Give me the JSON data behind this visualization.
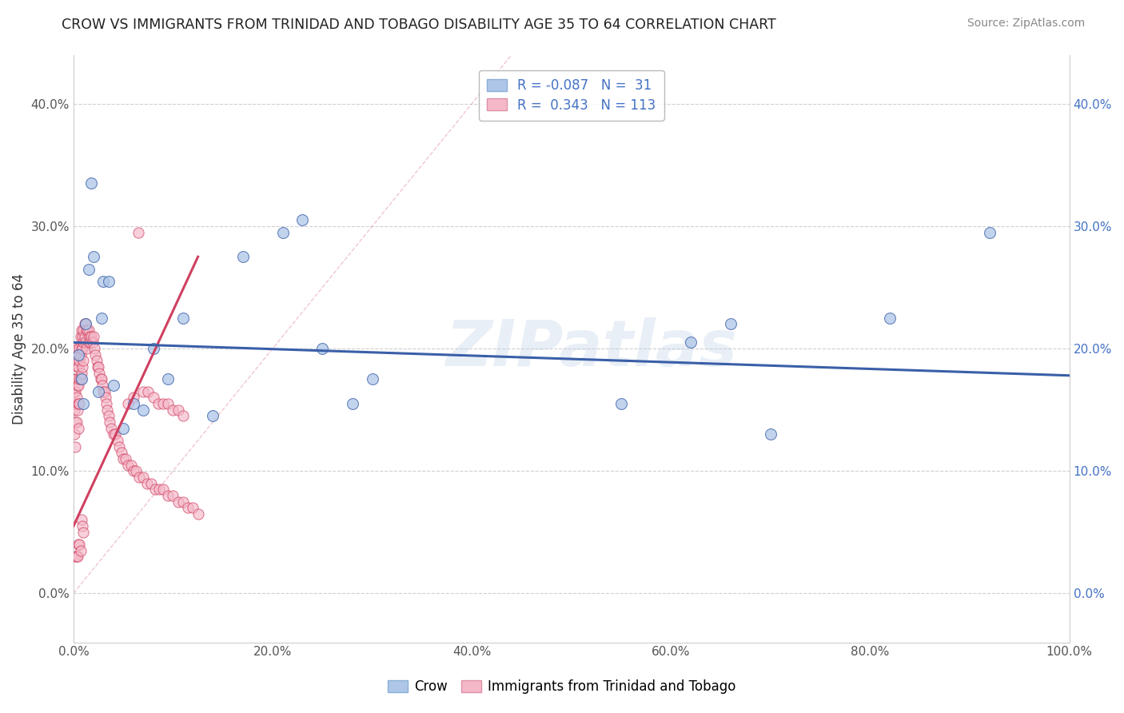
{
  "title": "CROW VS IMMIGRANTS FROM TRINIDAD AND TOBAGO DISABILITY AGE 35 TO 64 CORRELATION CHART",
  "source": "Source: ZipAtlas.com",
  "ylabel": "Disability Age 35 to 64",
  "watermark": "ZIPatlas",
  "xlim": [
    0,
    1.0
  ],
  "ylim": [
    -0.04,
    0.44
  ],
  "xticks": [
    0.0,
    0.2,
    0.4,
    0.6,
    0.8,
    1.0
  ],
  "xticklabels": [
    "0.0%",
    "20.0%",
    "40.0%",
    "60.0%",
    "80.0%",
    "100.0%"
  ],
  "yticks": [
    0.0,
    0.1,
    0.2,
    0.3,
    0.4
  ],
  "yticklabels": [
    "0.0%",
    "10.0%",
    "20.0%",
    "30.0%",
    "40.0%"
  ],
  "crow_R": -0.087,
  "crow_N": 31,
  "tt_R": 0.343,
  "tt_N": 113,
  "crow_color": "#aec6e8",
  "tt_color": "#f4b8c8",
  "crow_line_color": "#3a5fa8",
  "tt_line_color": "#d04060",
  "grid_color": "#bbbbbb",
  "background_color": "#ffffff",
  "crow_scatter_x": [
    0.005,
    0.008,
    0.01,
    0.012,
    0.015,
    0.018,
    0.02,
    0.025,
    0.028,
    0.03,
    0.035,
    0.04,
    0.05,
    0.06,
    0.07,
    0.08,
    0.095,
    0.11,
    0.14,
    0.17,
    0.21,
    0.25,
    0.3,
    0.23,
    0.28,
    0.55,
    0.62,
    0.66,
    0.7,
    0.82,
    0.92
  ],
  "crow_scatter_y": [
    0.195,
    0.175,
    0.155,
    0.22,
    0.265,
    0.335,
    0.275,
    0.165,
    0.225,
    0.255,
    0.255,
    0.17,
    0.135,
    0.155,
    0.15,
    0.2,
    0.175,
    0.225,
    0.145,
    0.275,
    0.295,
    0.2,
    0.175,
    0.305,
    0.155,
    0.155,
    0.205,
    0.22,
    0.13,
    0.225,
    0.295
  ],
  "tt_scatter_x": [
    0.001,
    0.001,
    0.001,
    0.002,
    0.002,
    0.002,
    0.002,
    0.002,
    0.003,
    0.003,
    0.003,
    0.003,
    0.004,
    0.004,
    0.004,
    0.004,
    0.005,
    0.005,
    0.005,
    0.005,
    0.005,
    0.006,
    0.006,
    0.006,
    0.006,
    0.007,
    0.007,
    0.007,
    0.008,
    0.008,
    0.008,
    0.009,
    0.009,
    0.009,
    0.01,
    0.01,
    0.01,
    0.011,
    0.011,
    0.012,
    0.012,
    0.013,
    0.013,
    0.014,
    0.015,
    0.015,
    0.016,
    0.017,
    0.018,
    0.019,
    0.02,
    0.021,
    0.022,
    0.023,
    0.024,
    0.025,
    0.026,
    0.027,
    0.028,
    0.029,
    0.03,
    0.031,
    0.032,
    0.033,
    0.034,
    0.035,
    0.036,
    0.038,
    0.04,
    0.042,
    0.044,
    0.046,
    0.048,
    0.05,
    0.052,
    0.055,
    0.058,
    0.06,
    0.063,
    0.066,
    0.07,
    0.074,
    0.078,
    0.082,
    0.086,
    0.09,
    0.095,
    0.1,
    0.105,
    0.11,
    0.115,
    0.12,
    0.125,
    0.055,
    0.06,
    0.065,
    0.07,
    0.075,
    0.08,
    0.085,
    0.09,
    0.095,
    0.1,
    0.105,
    0.11,
    0.002,
    0.003,
    0.004,
    0.005,
    0.006,
    0.007,
    0.008,
    0.009,
    0.01
  ],
  "tt_scatter_y": [
    0.165,
    0.15,
    0.13,
    0.175,
    0.165,
    0.155,
    0.14,
    0.12,
    0.19,
    0.175,
    0.16,
    0.14,
    0.2,
    0.185,
    0.17,
    0.15,
    0.195,
    0.185,
    0.17,
    0.155,
    0.135,
    0.2,
    0.19,
    0.175,
    0.155,
    0.21,
    0.195,
    0.175,
    0.215,
    0.2,
    0.18,
    0.21,
    0.2,
    0.185,
    0.215,
    0.205,
    0.19,
    0.22,
    0.21,
    0.22,
    0.205,
    0.215,
    0.2,
    0.215,
    0.215,
    0.205,
    0.21,
    0.205,
    0.21,
    0.205,
    0.21,
    0.2,
    0.195,
    0.19,
    0.185,
    0.185,
    0.18,
    0.175,
    0.175,
    0.17,
    0.165,
    0.165,
    0.16,
    0.155,
    0.15,
    0.145,
    0.14,
    0.135,
    0.13,
    0.13,
    0.125,
    0.12,
    0.115,
    0.11,
    0.11,
    0.105,
    0.105,
    0.1,
    0.1,
    0.095,
    0.095,
    0.09,
    0.09,
    0.085,
    0.085,
    0.085,
    0.08,
    0.08,
    0.075,
    0.075,
    0.07,
    0.07,
    0.065,
    0.155,
    0.16,
    0.295,
    0.165,
    0.165,
    0.16,
    0.155,
    0.155,
    0.155,
    0.15,
    0.15,
    0.145,
    0.03,
    0.03,
    0.03,
    0.04,
    0.04,
    0.035,
    0.06,
    0.055,
    0.05
  ]
}
